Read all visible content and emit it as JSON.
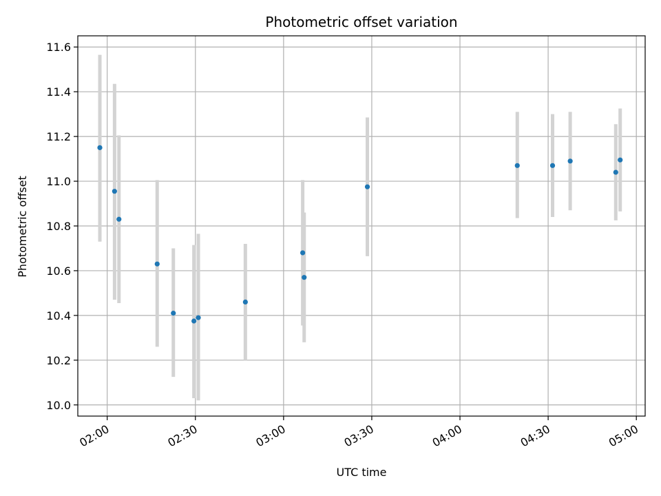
{
  "chart_data": {
    "type": "scatter",
    "title": "Photometric offset variation",
    "xlabel": "UTC time",
    "ylabel": "Photometric offset",
    "x_ticks": [
      "02:00",
      "02:30",
      "03:00",
      "03:30",
      "04:00",
      "04:30",
      "05:00"
    ],
    "y_ticks": [
      "10.0",
      "10.2",
      "10.4",
      "10.6",
      "10.8",
      "11.0",
      "11.2",
      "11.4",
      "11.6"
    ],
    "xlim": [
      "01:50",
      "05:03"
    ],
    "ylim": [
      9.95,
      11.65
    ],
    "grid": true,
    "point_color": "#1f77b4",
    "errorbar_color": "#d3d3d3",
    "points": [
      {
        "x": "01:57:30",
        "y": 11.15,
        "ylow": 10.73,
        "yhigh": 11.565
      },
      {
        "x": "02:02:30",
        "y": 10.955,
        "ylow": 10.47,
        "yhigh": 11.435
      },
      {
        "x": "02:04:00",
        "y": 10.83,
        "ylow": 10.455,
        "yhigh": 11.205
      },
      {
        "x": "02:17:00",
        "y": 10.63,
        "ylow": 10.26,
        "yhigh": 11.005
      },
      {
        "x": "02:22:30",
        "y": 10.41,
        "ylow": 10.125,
        "yhigh": 10.7
      },
      {
        "x": "02:29:30",
        "y": 10.375,
        "ylow": 10.03,
        "yhigh": 10.715
      },
      {
        "x": "02:31:00",
        "y": 10.39,
        "ylow": 10.02,
        "yhigh": 10.765
      },
      {
        "x": "02:47:00",
        "y": 10.46,
        "ylow": 10.2,
        "yhigh": 10.72
      },
      {
        "x": "03:06:30",
        "y": 10.68,
        "ylow": 10.355,
        "yhigh": 11.005
      },
      {
        "x": "03:07:00",
        "y": 10.57,
        "ylow": 10.28,
        "yhigh": 10.86
      },
      {
        "x": "03:28:30",
        "y": 10.975,
        "ylow": 10.665,
        "yhigh": 11.285
      },
      {
        "x": "04:19:30",
        "y": 11.07,
        "ylow": 10.835,
        "yhigh": 11.31
      },
      {
        "x": "04:31:30",
        "y": 11.07,
        "ylow": 10.84,
        "yhigh": 11.3
      },
      {
        "x": "04:37:30",
        "y": 11.09,
        "ylow": 10.87,
        "yhigh": 11.31
      },
      {
        "x": "04:53:00",
        "y": 11.04,
        "ylow": 10.825,
        "yhigh": 11.255
      },
      {
        "x": "04:54:30",
        "y": 11.095,
        "ylow": 10.865,
        "yhigh": 11.325
      }
    ]
  }
}
